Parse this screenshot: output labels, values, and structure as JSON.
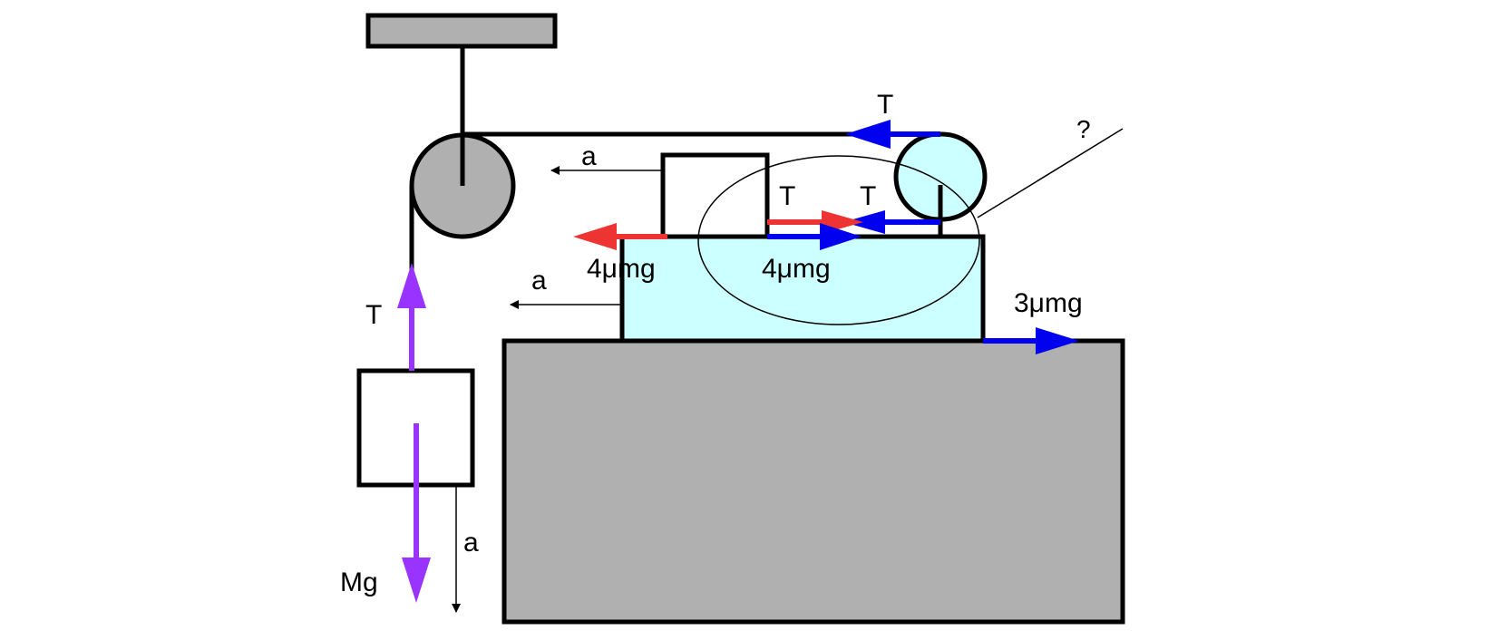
{
  "colors": {
    "gray": "#b0b0b0",
    "cyan": "#ccffff",
    "blue": "#0000ee",
    "red": "#ee3333",
    "purple": "#9933ff",
    "black": "#000000"
  },
  "labels": {
    "tension_top": "T",
    "tension_mid_left": "T",
    "tension_mid_right": "T",
    "tension_hanging": "T",
    "accel_small_block": "a",
    "accel_cart": "a",
    "accel_hanging": "a",
    "friction_left": "4μmg",
    "friction_right": "4μmg",
    "friction_ground": "3μmg",
    "weight": "Mg",
    "question": "?"
  }
}
